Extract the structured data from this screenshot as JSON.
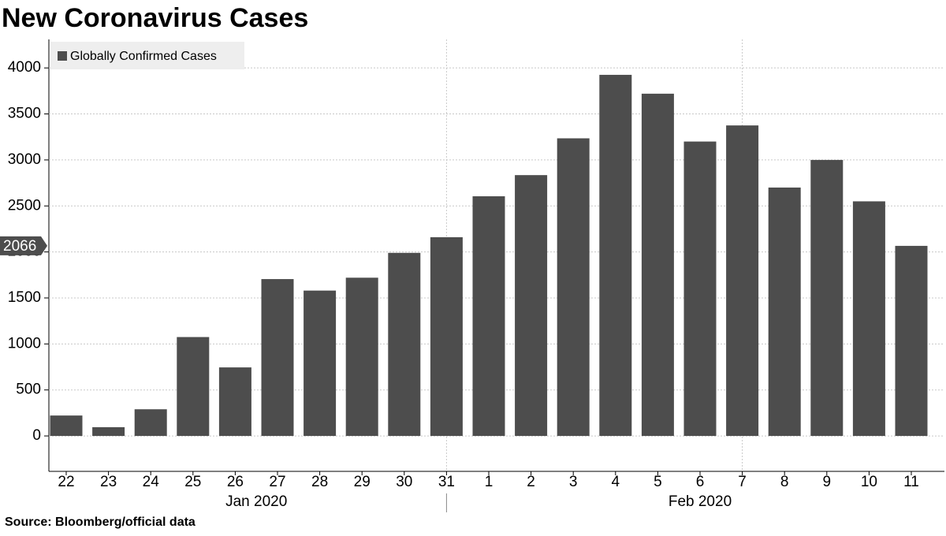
{
  "chart_data": {
    "type": "bar",
    "title": "New Coronavirus Cases",
    "source": "Source:  Bloomberg/official data",
    "categories": [
      "22",
      "23",
      "24",
      "25",
      "26",
      "27",
      "28",
      "29",
      "30",
      "31",
      "1",
      "2",
      "3",
      "4",
      "5",
      "6",
      "7",
      "8",
      "9",
      "10",
      "11"
    ],
    "groups": [
      {
        "label": "Jan 2020",
        "from": 0,
        "to": 9
      },
      {
        "label": "Feb 2020",
        "from": 10,
        "to": 20
      }
    ],
    "series": [
      {
        "name": "Globally Confirmed Cases",
        "color": "#4d4d4d",
        "values": [
          222,
          95,
          290,
          1075,
          745,
          1705,
          1580,
          1720,
          1990,
          2160,
          2605,
          2835,
          3235,
          3925,
          3720,
          3200,
          3375,
          2700,
          3000,
          2550,
          2066
        ]
      }
    ],
    "ylim": [
      -385,
      4310
    ],
    "yticks": [
      0,
      500,
      1000,
      1500,
      2000,
      2500,
      3000,
      3500,
      4000
    ],
    "grid": true,
    "legend": "top-left"
  }
}
